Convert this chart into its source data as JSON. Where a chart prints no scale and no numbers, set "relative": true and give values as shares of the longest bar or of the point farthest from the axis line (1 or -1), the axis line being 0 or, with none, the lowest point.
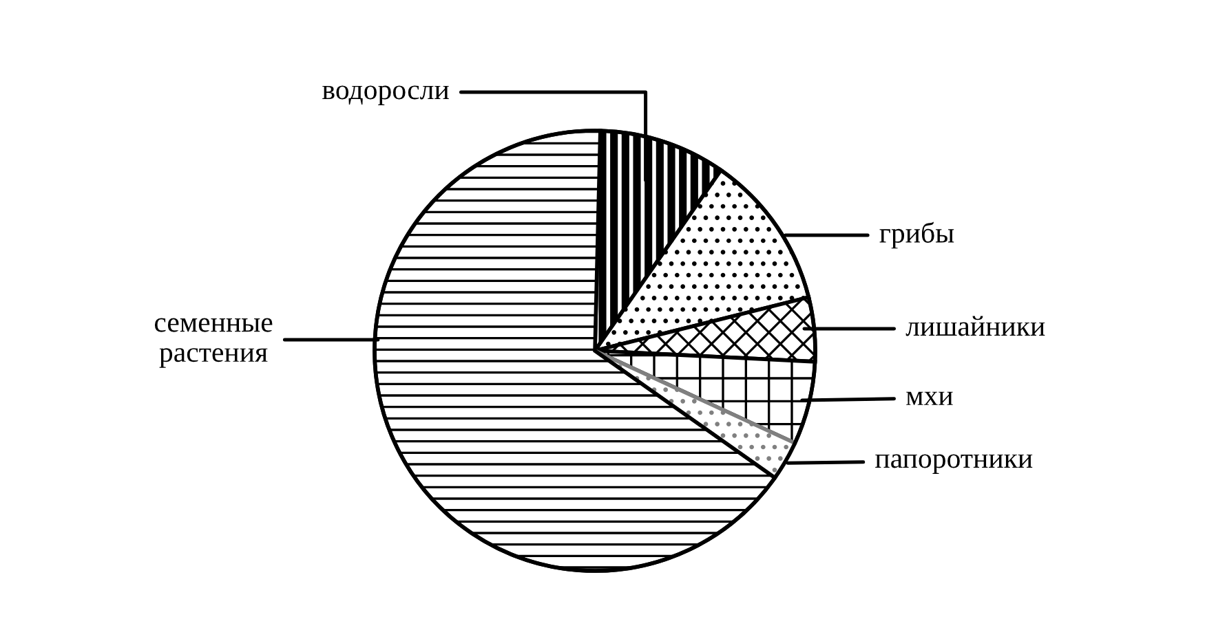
{
  "chart_data": {
    "type": "pie",
    "relative": true,
    "categories": [
      "водоросли",
      "грибы",
      "лишайники",
      "мхи",
      "папоротники",
      "семенные\nрастения"
    ],
    "values": [
      9.3,
      11.4,
      4.7,
      6.1,
      2.9,
      65.6
    ],
    "colors": [
      "#000000",
      "#000000",
      "#000000",
      "#000000",
      "#808080",
      "#000000"
    ],
    "legend": false
  }
}
